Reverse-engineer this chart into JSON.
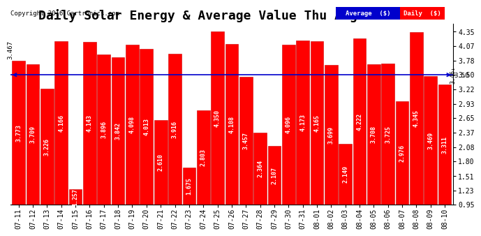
{
  "title": "Daily Solar Energy & Average Value Thu Aug 11 19:54",
  "copyright": "Copyright 2016 Cartronics.com",
  "categories": [
    "07-11",
    "07-12",
    "07-13",
    "07-14",
    "07-15",
    "07-16",
    "07-17",
    "07-18",
    "07-19",
    "07-20",
    "07-21",
    "07-22",
    "07-23",
    "07-24",
    "07-25",
    "07-26",
    "07-27",
    "07-28",
    "07-29",
    "07-30",
    "07-31",
    "08-01",
    "08-02",
    "08-03",
    "08-04",
    "08-05",
    "08-06",
    "08-07",
    "08-08",
    "08-09",
    "08-10"
  ],
  "values": [
    3.773,
    3.709,
    3.226,
    4.166,
    1.257,
    4.143,
    3.896,
    3.842,
    4.098,
    4.013,
    2.61,
    3.916,
    1.675,
    2.803,
    4.35,
    4.108,
    3.457,
    2.364,
    2.107,
    4.096,
    4.173,
    4.165,
    3.699,
    2.149,
    4.222,
    3.708,
    3.725,
    2.976,
    4.345,
    3.469,
    3.311
  ],
  "average": 3.5,
  "bar_color": "#ff0000",
  "average_line_color": "#0000cc",
  "ymin": 0.95,
  "ymax": 4.5,
  "yticks": [
    0.95,
    1.23,
    1.51,
    1.8,
    2.08,
    2.37,
    2.65,
    2.93,
    3.22,
    3.5,
    3.78,
    4.07,
    4.35
  ],
  "background_color": "#ffffff",
  "legend_avg_bg": "#0000cc",
  "legend_daily_bg": "#ff0000",
  "title_fontsize": 13,
  "tick_fontsize": 7,
  "bar_label_fontsize": 6,
  "first_bar_left_label": "3.467",
  "average_label": "3.50",
  "last_bar_right_label": "3.46↓"
}
